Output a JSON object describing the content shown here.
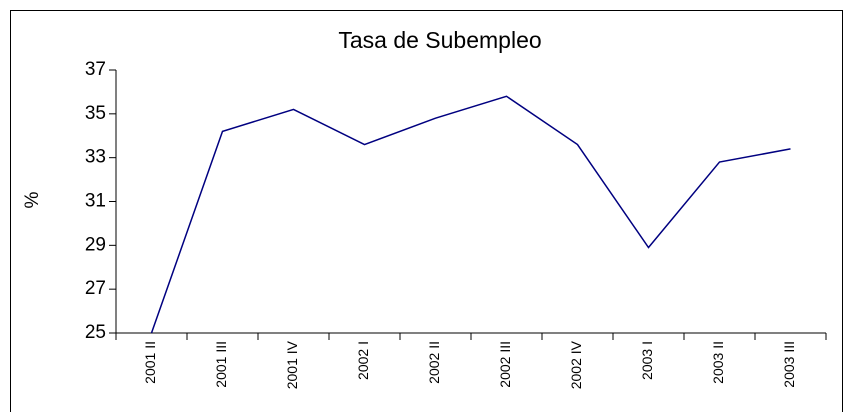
{
  "chart_data": {
    "type": "line",
    "title": "Tasa de Subempleo",
    "y_label": "%",
    "categories": [
      "2001 II",
      "2001 III",
      "2001 IV",
      "2002 I",
      "2002 II",
      "2002 III",
      "2002 IV",
      "2003 I",
      "2003 II",
      "2003 III"
    ],
    "series": [
      {
        "name": "Tasa de Subempleo",
        "color": "#000080",
        "values": [
          25.0,
          34.2,
          35.2,
          33.6,
          34.8,
          35.8,
          33.6,
          28.9,
          32.8,
          33.4
        ]
      }
    ],
    "ylim": [
      25,
      37
    ],
    "yticks": [
      25,
      27,
      29,
      31,
      33,
      35,
      37
    ],
    "grid": false
  }
}
